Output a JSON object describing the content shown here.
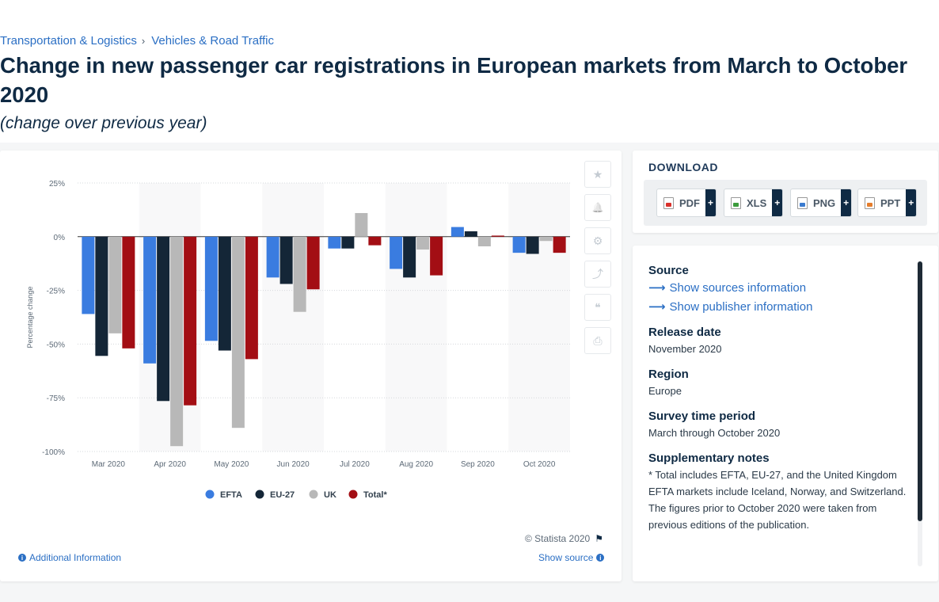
{
  "breadcrumb": {
    "item1": "Transportation & Logistics",
    "item2": "Vehicles & Road Traffic",
    "separator": "›"
  },
  "page": {
    "title": "Change in new passenger car registrations in European markets from March to October 2020",
    "subtitle": "(change over previous year)"
  },
  "chart_data": {
    "type": "bar",
    "categories": [
      "Mar 2020",
      "Apr 2020",
      "May 2020",
      "Jun 2020",
      "Jul 2020",
      "Aug 2020",
      "Sep 2020",
      "Oct 2020"
    ],
    "series": [
      {
        "name": "EFTA",
        "color": "#3a7ce0",
        "values": [
          -36,
          -59,
          -48.5,
          -19,
          -5.5,
          -15,
          4.5,
          -7.5
        ]
      },
      {
        "name": "EU-27",
        "color": "#142637",
        "values": [
          -55.5,
          -76.5,
          -53,
          -22,
          -5.5,
          -19,
          2.5,
          -8
        ]
      },
      {
        "name": "UK",
        "color": "#b8b8b8",
        "values": [
          -45,
          -97.5,
          -89,
          -35,
          11,
          -6,
          -4.5,
          -2
        ]
      },
      {
        "name": "Total*",
        "color": "#a30e14",
        "values": [
          -52,
          -78.5,
          -57,
          -24.5,
          -4,
          -18,
          0.5,
          -7.5
        ]
      }
    ],
    "ylabel": "Percentage change",
    "ylim": [
      -100,
      25
    ],
    "yticks": [
      25,
      0,
      -25,
      -50,
      -75,
      -100
    ],
    "ytick_labels": [
      "25%",
      "0%",
      "-25%",
      "-50%",
      "-75%",
      "-100%"
    ],
    "grid": true,
    "legend": "bottom"
  },
  "toolbar": {
    "icons": [
      "star-icon",
      "bell-icon",
      "gear-icon",
      "share-icon",
      "quote-icon",
      "print-icon"
    ],
    "star": "★",
    "bell": "🔔",
    "gear": "⚙",
    "share": "⤴",
    "quote": "❝",
    "print": "⎙"
  },
  "footer": {
    "credit": "© Statista 2020",
    "additional_info": "Additional Information",
    "show_source": "Show source"
  },
  "download": {
    "title": "DOWNLOAD",
    "buttons": [
      {
        "label": "PDF",
        "color": "#d9302a"
      },
      {
        "label": "XLS",
        "color": "#3c9b3c"
      },
      {
        "label": "PNG",
        "color": "#3b7bd0"
      },
      {
        "label": "PPT",
        "color": "#e57d2c"
      }
    ],
    "plus": "+"
  },
  "source": {
    "source_heading": "Source",
    "show_sources": "Show sources information",
    "show_publisher": "Show publisher information",
    "release_heading": "Release date",
    "release_value": "November 2020",
    "region_heading": "Region",
    "region_value": "Europe",
    "survey_heading": "Survey time period",
    "survey_value": "March through October 2020",
    "notes_heading": "Supplementary notes",
    "note1": "* Total includes EFTA, EU-27, and the United Kingdom",
    "note2": "EFTA markets include Iceland, Norway, and Switzerland.",
    "note3": "The figures prior to October 2020 were taken from previous editions of the publication."
  }
}
